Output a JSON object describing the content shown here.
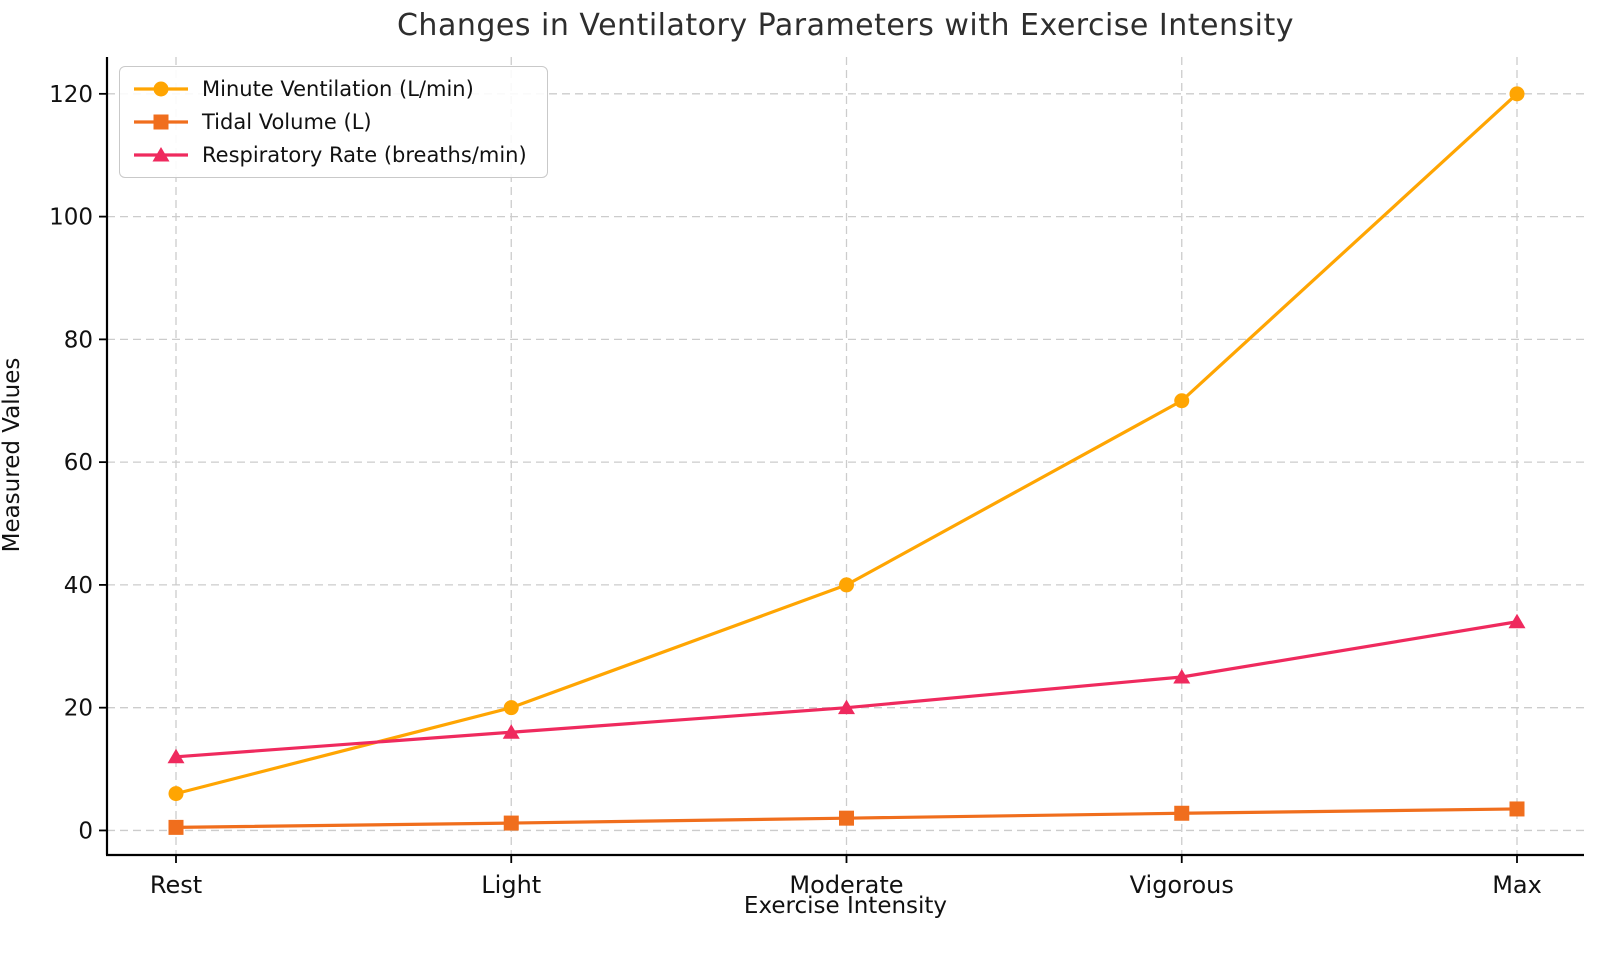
{
  "chart_data": {
    "type": "line",
    "title": "Changes in Ventilatory Parameters with Exercise Intensity",
    "xlabel": "Exercise Intensity",
    "ylabel": "Measured Values",
    "categories": [
      "Rest",
      "Light",
      "Moderate",
      "Vigorous",
      "Max"
    ],
    "series": [
      {
        "name": "Minute Ventilation (L/min)",
        "values": [
          6,
          20,
          40,
          70,
          120
        ],
        "color": "#FFA502",
        "marker": "circle"
      },
      {
        "name": "Tidal Volume (L)",
        "values": [
          0.5,
          1.2,
          2.0,
          2.8,
          3.5
        ],
        "color": "#F06E1D",
        "marker": "square"
      },
      {
        "name": "Respiratory Rate (breaths/min)",
        "values": [
          12,
          16,
          20,
          25,
          34
        ],
        "color": "#EF2A5E",
        "marker": "triangle"
      }
    ],
    "yticks": [
      0,
      20,
      40,
      60,
      80,
      100,
      120
    ],
    "ylim": [
      -4,
      126
    ],
    "grid": true,
    "grid_color": "#cccccc",
    "axis_color": "#000000",
    "legend_position": "upper-left"
  }
}
